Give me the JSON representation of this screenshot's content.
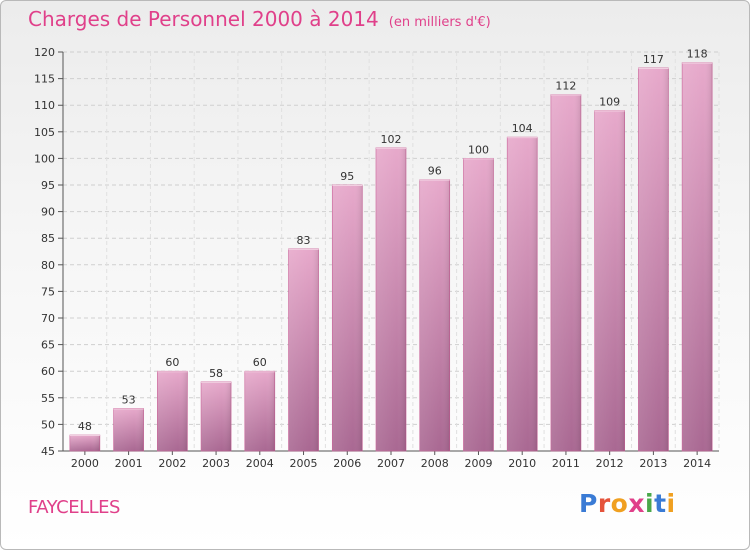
{
  "header": {
    "title": "Charges de Personnel 2000 à 2014",
    "subtitle": "(en milliers d'€)"
  },
  "footer": {
    "commune": "FAYCELLES",
    "logo": "Proxiti"
  },
  "colors": {
    "title": "#e0408a",
    "bar_top": "#e7a9cb",
    "bar_bottom": "#a96892",
    "bar_edge": "#c65a93"
  },
  "chart_data": {
    "type": "bar",
    "title": "Charges de Personnel 2000 à 2014",
    "subtitle": "(en milliers d'€)",
    "categories": [
      "2000",
      "2001",
      "2002",
      "2003",
      "2004",
      "2005",
      "2006",
      "2007",
      "2008",
      "2009",
      "2010",
      "2011",
      "2012",
      "2013",
      "2014"
    ],
    "values": [
      48,
      53,
      60,
      58,
      60,
      83,
      95,
      102,
      96,
      100,
      104,
      112,
      109,
      117,
      118
    ],
    "ylim": [
      45,
      120
    ],
    "yticks": [
      45,
      50,
      55,
      60,
      65,
      70,
      75,
      80,
      85,
      90,
      95,
      100,
      105,
      110,
      115,
      120
    ],
    "grid": true,
    "data_labels": true
  }
}
